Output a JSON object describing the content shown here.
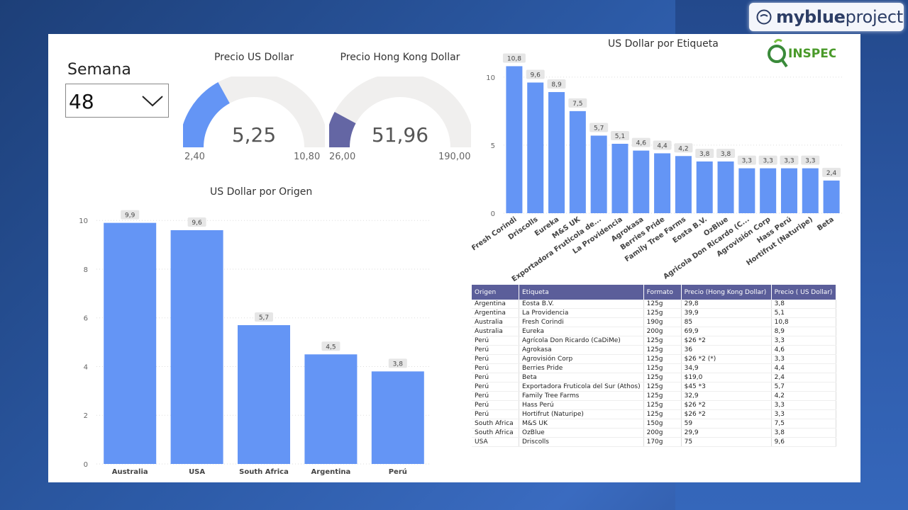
{
  "brand": {
    "name_bold": "myblue",
    "name_light": "project"
  },
  "semana": {
    "title": "Semana",
    "selected": "48"
  },
  "gauges": [
    {
      "title": "Precio US Dollar",
      "value": "5,25",
      "min": "2,40",
      "max": "10,80",
      "fraction": 0.34,
      "color": "#6495f5"
    },
    {
      "title": "Precio Hong Kong Dollar",
      "value": "51,96",
      "min": "26,00",
      "max": "190,00",
      "fraction": 0.158,
      "color": "#6466a4"
    }
  ],
  "inspec_logo": "INSPEC",
  "colors": {
    "bar": "#6495f5",
    "header": "#5b5e9a"
  },
  "chart_data": [
    {
      "type": "bar",
      "title": "US Dollar por Origen",
      "categories": [
        "Australia",
        "USA",
        "South Africa",
        "Argentina",
        "Perú"
      ],
      "values": [
        9.9,
        9.6,
        5.7,
        4.5,
        3.8
      ],
      "data_labels": [
        "9,9",
        "9,6",
        "5,7",
        "4,5",
        "3,8"
      ],
      "yticks": [
        "0",
        "2",
        "4",
        "6",
        "8",
        "10"
      ],
      "ylim": [
        0,
        10.5
      ]
    },
    {
      "type": "bar",
      "title": "US Dollar por Etiqueta",
      "categories": [
        "Fresh Corindi",
        "Driscolls",
        "Eureka",
        "M&S UK",
        "Exportadora Fruticola de...",
        "La Providencia",
        "Agrokasa",
        "Berries Pride",
        "Family Tree Farms",
        "Eosta B.V.",
        "OzBlue",
        "Agricola Don Ricardo (C...",
        "Agrovisión Corp",
        "Hass Perú",
        "Hortifrut (Naturipe)",
        "Beta"
      ],
      "values": [
        10.8,
        9.6,
        8.9,
        7.5,
        5.7,
        5.1,
        4.6,
        4.4,
        4.2,
        3.8,
        3.8,
        3.3,
        3.3,
        3.3,
        3.3,
        2.4
      ],
      "data_labels": [
        "10,8",
        "9,6",
        "8,9",
        "7,5",
        "5,7",
        "5,1",
        "4,6",
        "4,4",
        "4,2",
        "3,8",
        "3,8",
        "3,3",
        "3,3",
        "3,3",
        "3,3",
        "2,4"
      ],
      "yticks": [
        "0",
        "5",
        "10"
      ],
      "ylim": [
        0,
        11.5
      ]
    },
    {
      "type": "table",
      "columns": [
        "Origen",
        "Etiqueta",
        "Formato",
        "Precio (Hong Kong Dollar)",
        "Precio ( US Dollar)"
      ],
      "rows": [
        [
          "Argentina",
          "Eosta B.V.",
          "125g",
          "29,8",
          "3,8"
        ],
        [
          "Argentina",
          "La Providencia",
          "125g",
          "39,9",
          "5,1"
        ],
        [
          "Australia",
          "Fresh Corindi",
          "190g",
          "85",
          "10,8"
        ],
        [
          "Australia",
          "Eureka",
          "200g",
          "69,9",
          "8,9"
        ],
        [
          "Perú",
          "Agrícola Don Ricardo (CaDiMe)",
          "125g",
          "$26 *2",
          "3,3"
        ],
        [
          "Perú",
          "Agrokasa",
          "125g",
          "36",
          "4,6"
        ],
        [
          "Perú",
          "Agrovisión Corp",
          "125g",
          "$26 *2 (*)",
          "3,3"
        ],
        [
          "Perú",
          "Berries Pride",
          "125g",
          "34,9",
          "4,4"
        ],
        [
          "Perú",
          "Beta",
          "125g",
          "$19,0",
          "2,4"
        ],
        [
          "Perú",
          "Exportadora Fruticola del Sur (Athos)",
          "125g",
          "$45 *3",
          "5,7"
        ],
        [
          "Perú",
          "Family Tree Farms",
          "125g",
          "32,9",
          "4,2"
        ],
        [
          "Perú",
          "Hass Perú",
          "125g",
          "$26 *2",
          "3,3"
        ],
        [
          "Perú",
          "Hortifrut (Naturipe)",
          "125g",
          "$26 *2",
          "3,3"
        ],
        [
          "South Africa",
          "M&S UK",
          "150g",
          "59",
          "7,5"
        ],
        [
          "South Africa",
          "OzBlue",
          "200g",
          "29,9",
          "3,8"
        ],
        [
          "USA",
          "Driscolls",
          "170g",
          "75",
          "9,6"
        ]
      ]
    }
  ]
}
